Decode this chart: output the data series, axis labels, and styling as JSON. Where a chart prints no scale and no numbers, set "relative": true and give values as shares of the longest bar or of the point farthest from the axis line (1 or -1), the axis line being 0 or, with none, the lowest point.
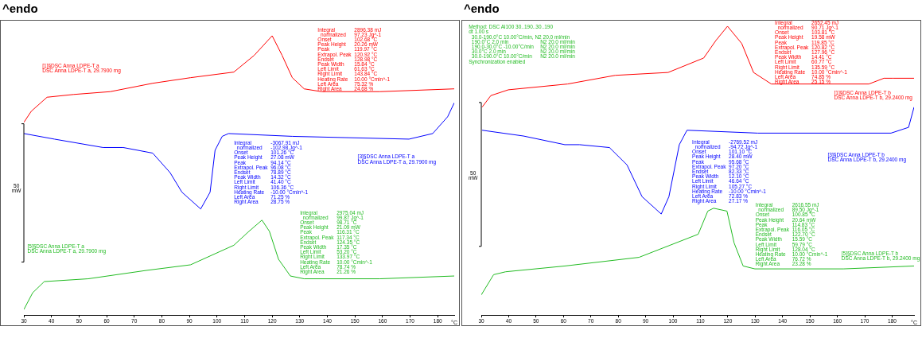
{
  "chart_data": [
    {
      "type": "line",
      "title": "^endo",
      "xlabel": "°C",
      "relative": true,
      "xlim": [
        30,
        186
      ],
      "xticks": [
        30,
        40,
        50,
        60,
        70,
        80,
        90,
        100,
        110,
        120,
        130,
        140,
        150,
        160,
        170,
        180
      ],
      "series": [
        {
          "name": "[1]§DSC Anna LDPE-T a",
          "color": "#ff0000",
          "x": [
            30,
            32.7,
            38.4,
            48.1,
            61.3,
            76.7,
            90.4,
            106.1,
            113.5,
            120,
            123.6,
            127.3,
            131.6,
            137.9,
            159,
            186
          ],
          "values": [
            0.69,
            0.73,
            0.78,
            0.79,
            0.8,
            0.83,
            0.85,
            0.87,
            0.93,
            1,
            0.93,
            0.85,
            0.81,
            0.8,
            0.8,
            0.81
          ]
        },
        {
          "name": "[3]§DSC Anna LDPE-T a",
          "color": "#0000ff",
          "x": [
            30,
            41.1,
            58.7,
            66,
            76.7,
            83,
            87.3,
            94.1,
            97.5,
            99.3,
            101.9,
            104.2,
            127.3,
            169.6,
            178.2,
            183.6,
            186
          ],
          "values": [
            0.65,
            0.63,
            0.6,
            0.6,
            0.58,
            0.51,
            0.44,
            0.38,
            0.44,
            0.59,
            0.64,
            0.65,
            0.64,
            0.63,
            0.65,
            0.71,
            0.76
          ]
        },
        {
          "name": "[5]§DSC Anna LDPE-T a",
          "color": "#22bb22",
          "x": [
            30,
            33.2,
            37.4,
            53.3,
            74.4,
            90.4,
            106.1,
            111.6,
            116.3,
            119,
            122.3,
            126.6,
            131.6,
            159,
            186
          ],
          "values": [
            0.02,
            0.08,
            0.12,
            0.13,
            0.16,
            0.18,
            0.25,
            0.3,
            0.34,
            0.3,
            0.2,
            0.14,
            0.13,
            0.13,
            0.14
          ]
        }
      ],
      "annotations": [
        "Integral\t2896.38 mJ\n  normalized\t97.23 Jg^-1\nOnset\t102.68 °C\nPeak Height\t20.26 mW\nPeak\t119.97 °C\nExtrapol. Peak\t120.92 °C\nEndset\t128.98 °C\nPeak Width\t15.84 °C\nLeft Limit\t61.63 °C\nRight Limit\t143.84 °C\nHeating Rate\t10.00 °Cmin^-1\nLeft Area\t75.32 %\nRight Area\t24.68 %",
        "DSC Anna LDPE-T a, 29.7900 mg",
        "Integral\t-3067.91 mJ\n  normalized\t-102.98 Jg^-1\nOnset\t101.26 °C\nPeak Height\t27.08 mW\nPeak\t94.14 °C\nExtrapol. Peak\t96.08 °C\nEndset\t78.89 °C\nPeak Width\t14.32 °C\nLeft Limit\t41.40 °C\nRight Limit\t106.36 °C\nHeating Rate\t-10.00 °Cmin^-1\nLeft Area\t71.25 %\nRight Area\t28.75 %",
        "DSC Anna LDPE-T a, 29.7900 mg",
        "Integral\t2975.04 mJ\n  normalized\t99.87 Jg^-1\nOnset\t98.71 °C\nPeak Height\t21.09 mW\nPeak\t116.31 °C\nExtrapol. Peak\t117.34 °C\nEndset\t124.35 °C\nPeak Width\t17.35 °C\nLeft Limit\t53.20 °C\nRight Limit\t133.97 °C\nHeating Rate\t10.00 °Cmin^-1\nLeft Area\t78.74 %\nRight Area\t21.26 %",
        "DSC Anna LDPE-T a, 29.7900 mg",
        "50\nmW"
      ]
    },
    {
      "type": "line",
      "title": "^endo",
      "xlabel": "°C",
      "relative": true,
      "xlim": [
        30,
        188
      ],
      "xticks": [
        30,
        40,
        50,
        60,
        70,
        80,
        90,
        100,
        110,
        120,
        130,
        140,
        150,
        160,
        170,
        180
      ],
      "series": [
        {
          "name": "[1]§DSC Anna LDPE-T b",
          "color": "#ff0000",
          "x": [
            30.3,
            33.5,
            39.9,
            61.5,
            78.9,
            98.2,
            111.2,
            115.6,
            119.9,
            125.1,
            129.4,
            135.9,
            171.5,
            177,
            180.3,
            188
          ],
          "values": [
            0.72,
            0.76,
            0.78,
            0.8,
            0.83,
            0.84,
            0.89,
            0.95,
            1,
            0.94,
            0.84,
            0.8,
            0.8,
            0.82,
            0.82,
            0.82
          ]
        },
        {
          "name": "[3]§DSC Anna LDPE-T b",
          "color": "#0000ff",
          "x": [
            30.3,
            45.4,
            60.5,
            65.9,
            76.8,
            83.2,
            88.7,
            95.7,
            98.5,
            102.3,
            105.1,
            130.9,
            179.6,
            186,
            188
          ],
          "values": [
            0.64,
            0.62,
            0.59,
            0.59,
            0.58,
            0.52,
            0.41,
            0.35,
            0.41,
            0.59,
            0.64,
            0.63,
            0.63,
            0.65,
            0.72
          ]
        },
        {
          "name": "[5]§DSC Anna LDPE-T b",
          "color": "#22bb22",
          "x": [
            30,
            34.5,
            38.9,
            60.5,
            87.6,
            109.2,
            112.7,
            114.8,
            119.7,
            122.3,
            125.6,
            129.9,
            162.2,
            188
          ],
          "values": [
            0.07,
            0.14,
            0.15,
            0.17,
            0.2,
            0.28,
            0.36,
            0.37,
            0.36,
            0.25,
            0.17,
            0.16,
            0.16,
            0.17
          ]
        }
      ],
      "annotations": [
        "Integral\t2652.45 mJ\n  normalized\t90.71 Jg^-1\nOnset\t103.81 °C\nPeak Height\t19.58 mW\nPeak\t119.85 °C\nExtrapol. Peak\t120.82 °C\nEndset\t127.96 °C\nPeak Width\t14.41 °C\nLeft Limit\t60.77 °C\nRight Limit\t135.59 °C\nHeating Rate\t10.00 °Cmin^-1\nLeft Area\t74.85 %\nRight Area\t25.15 %",
        "DSC Anna LDPE-T b, 29.2400 mg",
        "Integral\t-2769.52 mJ\n  normalized\t-94.72 Jg^-1\nOnset\t101.10 °C\nPeak Height\t28.40 mW\nPeak\t95.68 °C\nExtrapol. Peak\t97.20 °C\nEndset\t82.33 °C\nPeak Width\t12.10 °C\nLeft Limit\t46.64 °C\nRight Limit\t105.27 °C\nHeating Rate\t-10.00 °Cmin^-1\nLeft Area\t72.83 %\nRight Area\t27.17 %",
        "DSC Anna LDPE-T b, 29.2400 mg",
        "Integral\t2616.55 mJ\n  normalized\t89.50 Jg^-1\nOnset\t100.85 °C\nPeak Height\t20.64 mW\nPeak\t114.83 °C\nExtrapol. Peak\t116.05 °C\nEndset\t122.70 °C\nPeak Width\t15.59 °C\nLeft Limit\t59.79 °C\nRight Limit\t128.04 °C\nHeating Rate\t10.00 °Cmin^-1\nLeft Area\t76.72 %\nRight Area\t23.28 %",
        "DSC Anna LDPE-T b, 29.2400 mg",
        "50\nmW",
        "Method: DSC Al100 30..190..30..190\ndt 1.00 s\n  30.0-190.0°C 10.00°C/min, N2 20.0 ml/min\n  190.0°C 2.0 min\tN2 20.0 ml/min\n  190.0-30.0°C -10.00°C/min\tN2 20.0 ml/min\n  30.0°C 2.0 min\tN2 20.0 ml/min\n  30.0-190.0°C 10.00°C/min\tN2 20.0 ml/min\nSynchronization enabled"
      ]
    }
  ]
}
